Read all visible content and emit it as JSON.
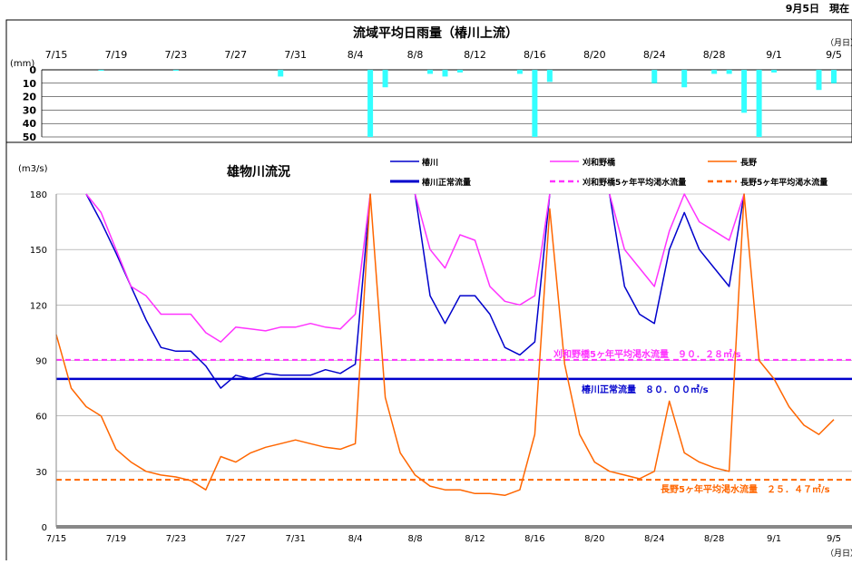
{
  "header": {
    "date_label": "9月5日　現在"
  },
  "rain_chart": {
    "title": "流域平均日雨量（椿川上流）",
    "ylabel": "(mm)",
    "xunit": "（月日）",
    "x_tick_labels": [
      "7/15",
      "7/19",
      "7/23",
      "7/27",
      "7/31",
      "8/4",
      "8/8",
      "8/12",
      "8/16",
      "8/20",
      "8/24",
      "8/28",
      "9/1",
      "9/5"
    ],
    "y_ticks": [
      0,
      10,
      20,
      30,
      40,
      50
    ],
    "bar_color": "#33ffff"
  },
  "flow_chart": {
    "title": "雄物川流況",
    "ylabel": "(m3/s)",
    "xunit": "（月日）",
    "x_tick_labels": [
      "7/15",
      "7/19",
      "7/23",
      "7/27",
      "7/31",
      "8/4",
      "8/8",
      "8/12",
      "8/16",
      "8/20",
      "8/24",
      "8/28",
      "9/1",
      "9/5"
    ],
    "y_ticks": [
      0,
      30,
      60,
      90,
      120,
      150,
      180
    ],
    "legend": {
      "tsubakigawa": "椿川",
      "kariwano": "刈和野橋",
      "nagano": "長野",
      "tsubakigawa_normal": "椿川正常流量",
      "kariwano_5yr": "刈和野橋5ヶ年平均渇水流量",
      "nagano_5yr": "長野5ヶ年平均渇水流量"
    },
    "annotations": {
      "kariwano_5yr": "刈和野橋5ヶ年平均渇水流量　９０．２８㎥/s",
      "tsubakigawa_normal": "椿川正常流量　８０．００㎥/s",
      "nagano_5yr": "長野5ヶ年平均渇水流量　２５．４７㎥/s"
    },
    "colors": {
      "tsubakigawa": "#0000cc",
      "kariwano": "#ff33ff",
      "nagano": "#ff6600"
    }
  },
  "chart_data": [
    {
      "type": "bar",
      "title": "流域平均日雨量（椿川上流）",
      "ylabel": "(mm)",
      "xlabel": "（月日）",
      "ylim": [
        0,
        50
      ],
      "y_inverted": true,
      "categories": [
        "7/15",
        "7/16",
        "7/17",
        "7/18",
        "7/19",
        "7/20",
        "7/21",
        "7/22",
        "7/23",
        "7/24",
        "7/25",
        "7/26",
        "7/27",
        "7/28",
        "7/29",
        "7/30",
        "7/31",
        "8/1",
        "8/2",
        "8/3",
        "8/4",
        "8/5",
        "8/6",
        "8/7",
        "8/8",
        "8/9",
        "8/10",
        "8/11",
        "8/12",
        "8/13",
        "8/14",
        "8/15",
        "8/16",
        "8/17",
        "8/18",
        "8/19",
        "8/20",
        "8/21",
        "8/22",
        "8/23",
        "8/24",
        "8/25",
        "8/26",
        "8/27",
        "8/28",
        "8/29",
        "8/30",
        "8/31",
        "9/1",
        "9/2",
        "9/3",
        "9/4",
        "9/5"
      ],
      "values": [
        0,
        0,
        0,
        0.5,
        0,
        0,
        0,
        0,
        0.5,
        0,
        0,
        0,
        0,
        0,
        0,
        5,
        0,
        0,
        0,
        0,
        0,
        50,
        13,
        0,
        0,
        3,
        5,
        2,
        0,
        0,
        0,
        3,
        50,
        9,
        0,
        0,
        0,
        0,
        0,
        0,
        10,
        0,
        13,
        0,
        3,
        3,
        32,
        50,
        2,
        0,
        0,
        15,
        10
      ]
    },
    {
      "type": "line",
      "title": "雄物川流況",
      "ylabel": "(m3/s)",
      "xlabel": "（月日）",
      "ylim": [
        0,
        180
      ],
      "x_range": [
        "7/15",
        "9/5"
      ],
      "series": [
        {
          "name": "椿川",
          "points": [
            [
              "7/17",
              180
            ],
            [
              "7/18",
              165
            ],
            [
              "7/19",
              148
            ],
            [
              "7/20",
              130
            ],
            [
              "7/21",
              112
            ],
            [
              "7/22",
              97
            ],
            [
              "7/23",
              95
            ],
            [
              "7/24",
              95
            ],
            [
              "7/25",
              87
            ],
            [
              "7/26",
              75
            ],
            [
              "7/27",
              82
            ],
            [
              "7/28",
              80
            ],
            [
              "7/29",
              83
            ],
            [
              "7/30",
              82
            ],
            [
              "7/31",
              82
            ],
            [
              "8/1",
              82
            ],
            [
              "8/2",
              85
            ],
            [
              "8/3",
              83
            ],
            [
              "8/4",
              88
            ],
            [
              "8/5",
              180
            ],
            [
              "8/8",
              180
            ],
            [
              "8/9",
              125
            ],
            [
              "8/10",
              110
            ],
            [
              "8/11",
              125
            ],
            [
              "8/12",
              125
            ],
            [
              "8/13",
              115
            ],
            [
              "8/14",
              97
            ],
            [
              "8/15",
              93
            ],
            [
              "8/16",
              100
            ],
            [
              "8/17",
              180
            ],
            [
              "8/21",
              180
            ],
            [
              "8/22",
              130
            ],
            [
              "8/23",
              115
            ],
            [
              "8/24",
              110
            ],
            [
              "8/25",
              150
            ],
            [
              "8/26",
              170
            ],
            [
              "8/27",
              150
            ],
            [
              "8/28",
              140
            ],
            [
              "8/29",
              130
            ],
            [
              "8/30",
              180
            ]
          ]
        },
        {
          "name": "刈和野橋",
          "points": [
            [
              "7/17",
              180
            ],
            [
              "7/18",
              170
            ],
            [
              "7/19",
              150
            ],
            [
              "7/20",
              130
            ],
            [
              "7/21",
              125
            ],
            [
              "7/22",
              115
            ],
            [
              "7/23",
              115
            ],
            [
              "7/24",
              115
            ],
            [
              "7/25",
              105
            ],
            [
              "7/26",
              100
            ],
            [
              "7/27",
              108
            ],
            [
              "7/28",
              107
            ],
            [
              "7/29",
              106
            ],
            [
              "7/30",
              108
            ],
            [
              "7/31",
              108
            ],
            [
              "8/1",
              110
            ],
            [
              "8/2",
              108
            ],
            [
              "8/3",
              107
            ],
            [
              "8/4",
              115
            ],
            [
              "8/5",
              180
            ],
            [
              "8/8",
              180
            ],
            [
              "8/9",
              150
            ],
            [
              "8/10",
              140
            ],
            [
              "8/11",
              158
            ],
            [
              "8/12",
              155
            ],
            [
              "8/13",
              130
            ],
            [
              "8/14",
              122
            ],
            [
              "8/15",
              120
            ],
            [
              "8/16",
              125
            ],
            [
              "8/17",
              180
            ],
            [
              "8/21",
              180
            ],
            [
              "8/22",
              150
            ],
            [
              "8/23",
              140
            ],
            [
              "8/24",
              130
            ],
            [
              "8/25",
              160
            ],
            [
              "8/26",
              180
            ],
            [
              "8/27",
              165
            ],
            [
              "8/28",
              160
            ],
            [
              "8/29",
              155
            ],
            [
              "8/30",
              180
            ]
          ]
        },
        {
          "name": "長野",
          "points": [
            [
              "7/15",
              104
            ],
            [
              "7/16",
              75
            ],
            [
              "7/17",
              65
            ],
            [
              "7/18",
              60
            ],
            [
              "7/19",
              42
            ],
            [
              "7/20",
              35
            ],
            [
              "7/21",
              30
            ],
            [
              "7/22",
              28
            ],
            [
              "7/23",
              27
            ],
            [
              "7/24",
              25
            ],
            [
              "7/25",
              20
            ],
            [
              "7/26",
              38
            ],
            [
              "7/27",
              35
            ],
            [
              "7/28",
              40
            ],
            [
              "7/29",
              43
            ],
            [
              "7/30",
              45
            ],
            [
              "7/31",
              47
            ],
            [
              "8/1",
              45
            ],
            [
              "8/2",
              43
            ],
            [
              "8/3",
              42
            ],
            [
              "8/4",
              45
            ],
            [
              "8/5",
              180
            ],
            [
              "8/6",
              70
            ],
            [
              "8/7",
              40
            ],
            [
              "8/8",
              28
            ],
            [
              "8/9",
              22
            ],
            [
              "8/10",
              20
            ],
            [
              "8/11",
              20
            ],
            [
              "8/12",
              18
            ],
            [
              "8/13",
              18
            ],
            [
              "8/14",
              17
            ],
            [
              "8/15",
              20
            ],
            [
              "8/16",
              50
            ],
            [
              "8/17",
              172
            ],
            [
              "8/18",
              88
            ],
            [
              "8/19",
              50
            ],
            [
              "8/20",
              35
            ],
            [
              "8/21",
              30
            ],
            [
              "8/22",
              28
            ],
            [
              "8/23",
              26
            ],
            [
              "8/24",
              30
            ],
            [
              "8/25",
              68
            ],
            [
              "8/26",
              40
            ],
            [
              "8/27",
              35
            ],
            [
              "8/28",
              32
            ],
            [
              "8/29",
              30
            ],
            [
              "8/30",
              180
            ],
            [
              "8/31",
              90
            ],
            [
              "9/1",
              80
            ],
            [
              "9/2",
              65
            ],
            [
              "9/3",
              55
            ],
            [
              "9/4",
              50
            ],
            [
              "9/5",
              58
            ]
          ]
        },
        {
          "name": "椿川正常流量",
          "constant": 80.0
        },
        {
          "name": "刈和野橋5ヶ年平均渇水流量",
          "constant": 90.28
        },
        {
          "name": "長野5ヶ年平均渇水流量",
          "constant": 25.47
        }
      ]
    }
  ]
}
